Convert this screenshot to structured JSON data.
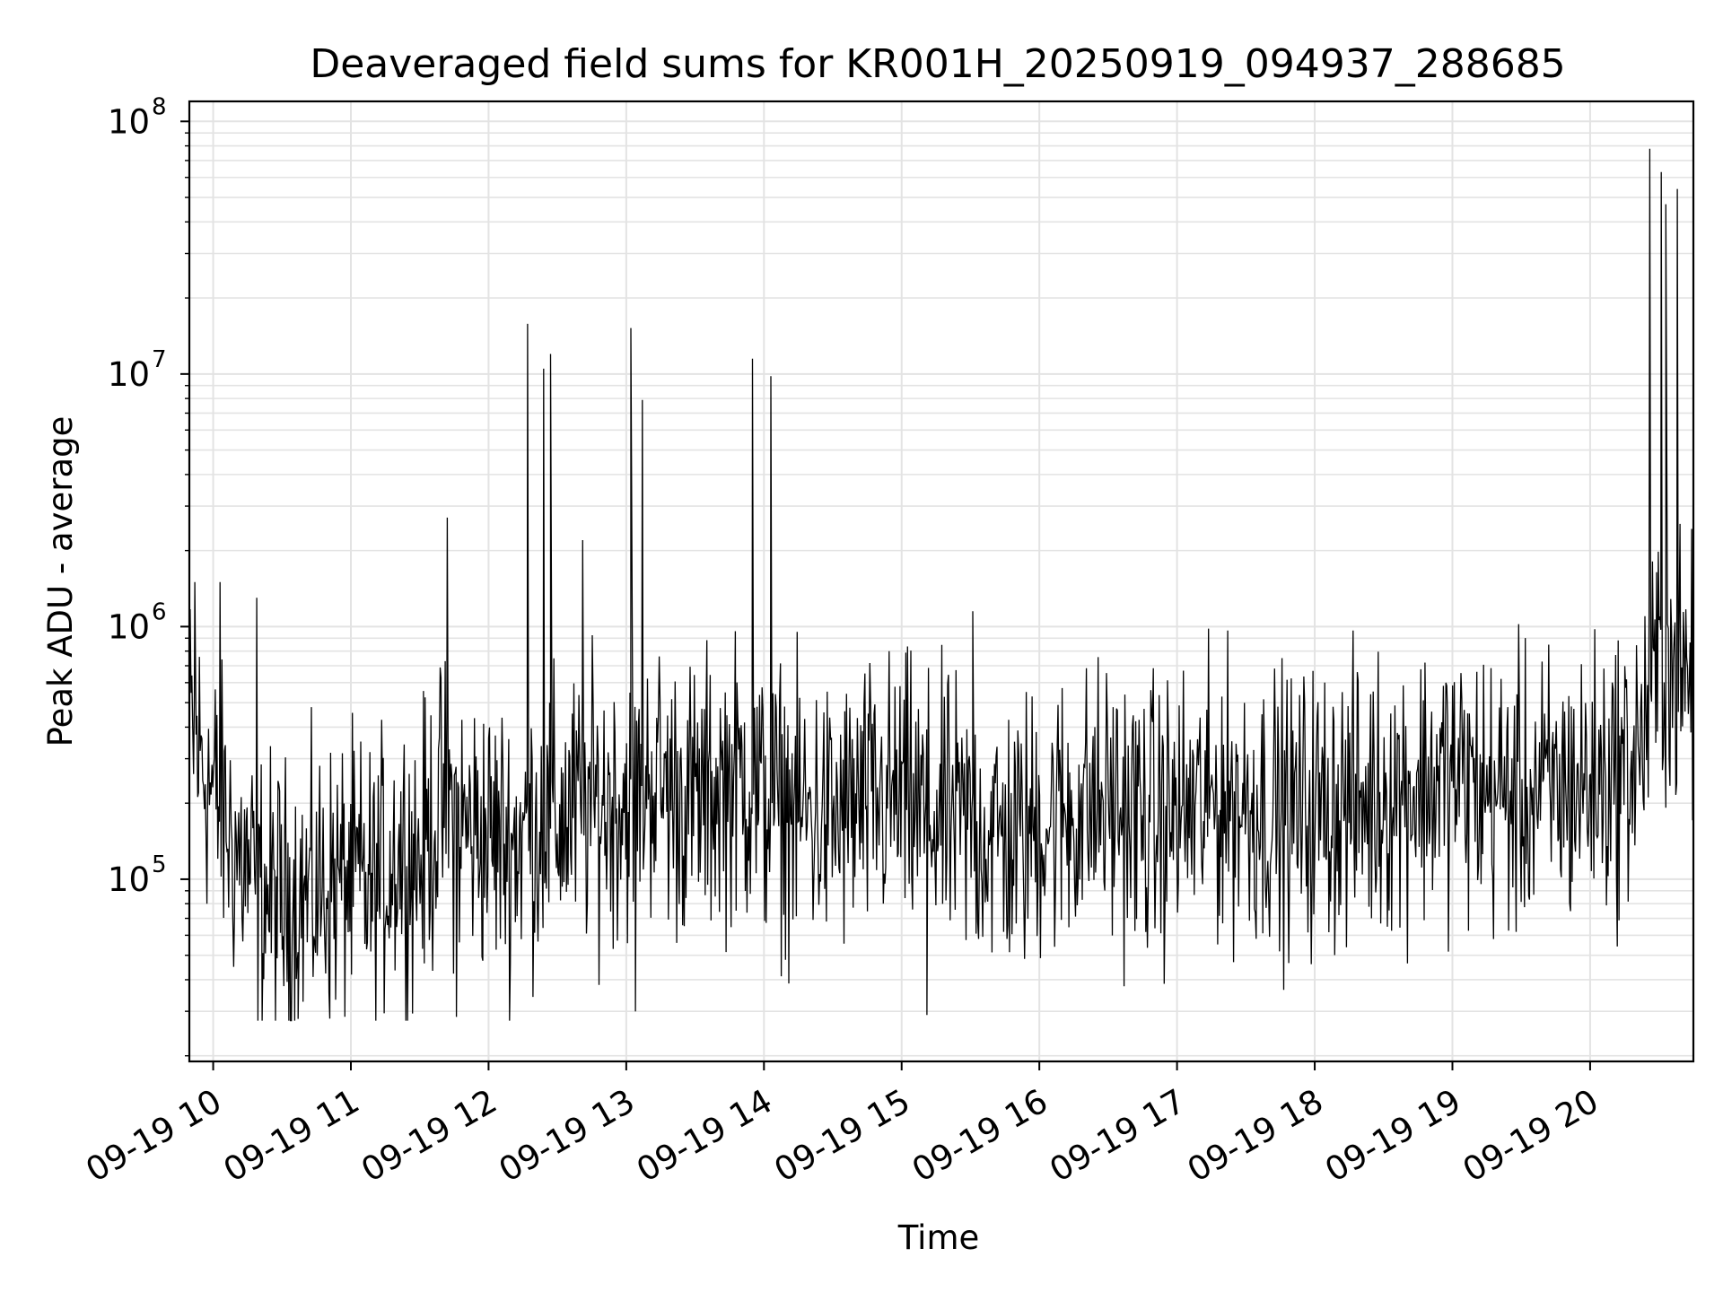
{
  "chart_data": {
    "type": "line",
    "title": "Deaveraged field sums for KR001H_20250919_094937_288685",
    "xlabel": "Time",
    "ylabel": "Peak ADU - average",
    "yscale": "log",
    "ylim": [
      19000,
      120000000
    ],
    "xlim": [
      "2025-09-19T09:49:37",
      "2025-09-19T20:45:00"
    ],
    "grid": true,
    "x_ticks": [
      {
        "value": "2025-09-19T10:00",
        "label": "09-19 10"
      },
      {
        "value": "2025-09-19T11:00",
        "label": "09-19 11"
      },
      {
        "value": "2025-09-19T12:00",
        "label": "09-19 12"
      },
      {
        "value": "2025-09-19T13:00",
        "label": "09-19 13"
      },
      {
        "value": "2025-09-19T14:00",
        "label": "09-19 14"
      },
      {
        "value": "2025-09-19T15:00",
        "label": "09-19 15"
      },
      {
        "value": "2025-09-19T16:00",
        "label": "09-19 16"
      },
      {
        "value": "2025-09-19T17:00",
        "label": "09-19 17"
      },
      {
        "value": "2025-09-19T18:00",
        "label": "09-19 18"
      },
      {
        "value": "2025-09-19T19:00",
        "label": "09-19 19"
      },
      {
        "value": "2025-09-19T20:00",
        "label": "09-19 20"
      }
    ],
    "y_ticks": [
      {
        "value": 100000,
        "base": "10",
        "exp": "5"
      },
      {
        "value": 1000000,
        "base": "10",
        "exp": "6"
      },
      {
        "value": 10000000,
        "base": "10",
        "exp": "7"
      },
      {
        "value": 100000000,
        "base": "10",
        "exp": "8"
      }
    ],
    "series": [
      {
        "color": "#000000",
        "x": [
          "2025-09-19T09:50",
          "2025-09-19T10:00",
          "2025-09-19T10:10",
          "2025-09-19T10:20",
          "2025-09-19T10:30",
          "2025-09-19T10:40",
          "2025-09-19T10:50",
          "2025-09-19T11:00",
          "2025-09-19T11:10",
          "2025-09-19T11:20",
          "2025-09-19T11:30",
          "2025-09-19T11:40",
          "2025-09-19T11:50",
          "2025-09-19T12:00",
          "2025-09-19T12:10",
          "2025-09-19T12:20",
          "2025-09-19T12:30",
          "2025-09-19T12:40",
          "2025-09-19T12:50",
          "2025-09-19T13:00",
          "2025-09-19T13:10",
          "2025-09-19T13:20",
          "2025-09-19T13:30",
          "2025-09-19T13:40",
          "2025-09-19T13:50",
          "2025-09-19T14:00",
          "2025-09-19T14:10",
          "2025-09-19T14:20",
          "2025-09-19T14:30",
          "2025-09-19T14:40",
          "2025-09-19T14:50",
          "2025-09-19T15:00",
          "2025-09-19T15:10",
          "2025-09-19T15:20",
          "2025-09-19T15:30",
          "2025-09-19T15:40",
          "2025-09-19T15:50",
          "2025-09-19T16:00",
          "2025-09-19T16:10",
          "2025-09-19T16:20",
          "2025-09-19T16:30",
          "2025-09-19T16:40",
          "2025-09-19T16:50",
          "2025-09-19T17:00",
          "2025-09-19T17:10",
          "2025-09-19T17:20",
          "2025-09-19T17:30",
          "2025-09-19T17:40",
          "2025-09-19T17:50",
          "2025-09-19T18:00",
          "2025-09-19T18:10",
          "2025-09-19T18:20",
          "2025-09-19T18:30",
          "2025-09-19T18:40",
          "2025-09-19T18:50",
          "2025-09-19T19:00",
          "2025-09-19T19:10",
          "2025-09-19T19:20",
          "2025-09-19T19:30",
          "2025-09-19T19:40",
          "2025-09-19T19:50",
          "2025-09-19T20:00",
          "2025-09-19T20:10",
          "2025-09-19T20:20",
          "2025-09-19T20:30",
          "2025-09-19T20:40"
        ],
        "y": [
          400000,
          220000,
          130000,
          90000,
          80000,
          85000,
          95000,
          100000,
          90000,
          130000,
          120000,
          200000,
          160000,
          150000,
          140000,
          160000,
          170000,
          190000,
          200000,
          210000,
          260000,
          220000,
          200000,
          230000,
          250000,
          200000,
          190000,
          180000,
          170000,
          190000,
          200000,
          210000,
          180000,
          170000,
          160000,
          150000,
          140000,
          170000,
          180000,
          190000,
          200000,
          180000,
          170000,
          180000,
          190000,
          210000,
          200000,
          190000,
          180000,
          190000,
          200000,
          200000,
          220000,
          230000,
          240000,
          260000,
          230000,
          220000,
          210000,
          220000,
          230000,
          240000,
          260000,
          300000,
          700000,
          600000
        ]
      }
    ],
    "spikes": [
      {
        "x": "2025-09-19T09:52",
        "y": 1500000
      },
      {
        "x": "2025-09-19T10:03",
        "y": 1500000
      },
      {
        "x": "2025-09-19T10:19",
        "y": 1300000
      },
      {
        "x": "2025-09-19T11:42",
        "y": 2700000
      },
      {
        "x": "2025-09-19T12:17",
        "y": 15800000
      },
      {
        "x": "2025-09-19T12:24",
        "y": 10500000
      },
      {
        "x": "2025-09-19T12:27",
        "y": 12000000
      },
      {
        "x": "2025-09-19T12:41",
        "y": 2200000
      },
      {
        "x": "2025-09-19T13:02",
        "y": 15200000
      },
      {
        "x": "2025-09-19T13:07",
        "y": 7900000
      },
      {
        "x": "2025-09-19T13:55",
        "y": 11500000
      },
      {
        "x": "2025-09-19T14:03",
        "y": 9800000
      },
      {
        "x": "2025-09-19T15:31",
        "y": 1150000
      },
      {
        "x": "2025-09-19T20:26",
        "y": 78000000
      },
      {
        "x": "2025-09-19T20:31",
        "y": 63000000
      },
      {
        "x": "2025-09-19T20:33",
        "y": 47000000
      },
      {
        "x": "2025-09-19T20:38",
        "y": 54000000
      }
    ],
    "dips": [
      {
        "x": "2025-09-19T10:37",
        "y": 28000
      },
      {
        "x": "2025-09-19T11:46",
        "y": 28500
      },
      {
        "x": "2025-09-19T13:04",
        "y": 30000
      },
      {
        "x": "2025-09-19T15:11",
        "y": 29000
      }
    ]
  }
}
